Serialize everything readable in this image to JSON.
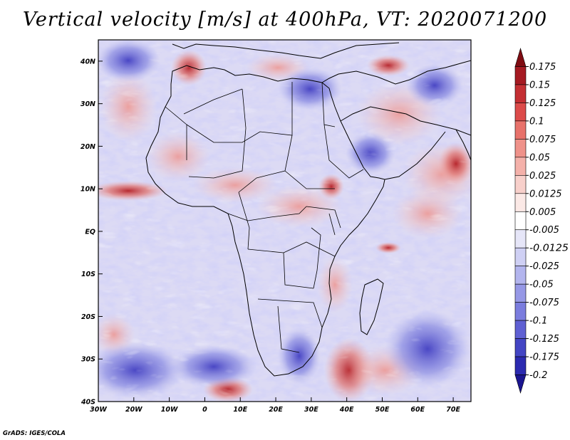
{
  "title": "Vertical velocity [m/s] at 400hPa, VT: 2020071200",
  "footer": "GrADS: IGES/COLA",
  "map": {
    "lat_range": [
      -40,
      45
    ],
    "lon_range": [
      -30,
      75
    ],
    "lat_ticks": [
      "40N",
      "30N",
      "20N",
      "10N",
      "EQ",
      "10S",
      "20S",
      "30S",
      "40S"
    ],
    "lat_tick_values": [
      40,
      30,
      20,
      10,
      0,
      -10,
      -20,
      -30,
      -40
    ],
    "lon_ticks": [
      "30W",
      "20W",
      "10W",
      "0",
      "10E",
      "20E",
      "30E",
      "40E",
      "50E",
      "60E",
      "70E"
    ],
    "lon_tick_values": [
      -30,
      -20,
      -10,
      0,
      10,
      20,
      30,
      40,
      50,
      60,
      70
    ]
  },
  "colorbar": {
    "labels": [
      "0.175",
      "0.15",
      "0.125",
      "0.1",
      "0.075",
      "0.05",
      "0.025",
      "0.0125",
      "0.005",
      "-0.005",
      "-0.0125",
      "-0.025",
      "-0.05",
      "-0.075",
      "-0.1",
      "-0.125",
      "-0.175",
      "-0.2"
    ],
    "colors": [
      "#7f0c12",
      "#a51a22",
      "#c42f33",
      "#dc4b4a",
      "#e8726b",
      "#ef928a",
      "#f4b1aa",
      "#f8d0cb",
      "#fbe9e6",
      "#ffffff",
      "#e6e6f8",
      "#cfd0f4",
      "#b3b5ee",
      "#9698e6",
      "#7b7dde",
      "#5f60d3",
      "#4345c4",
      "#2b2ab0",
      "#1a1590"
    ]
  }
}
